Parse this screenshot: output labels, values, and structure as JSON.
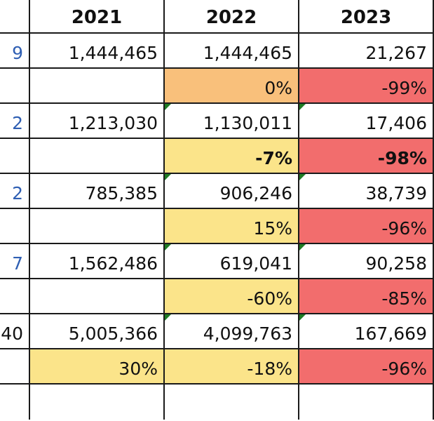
{
  "headers": [
    "",
    "2021",
    "2022",
    "2023"
  ],
  "rows": [
    {
      "kind": "value",
      "cells": [
        {
          "text": "9",
          "style": "left-val"
        },
        {
          "text": "1,444,465"
        },
        {
          "text": "1,444,465"
        },
        {
          "text": "21,267"
        }
      ]
    },
    {
      "kind": "percent",
      "cells": [
        {
          "text": ""
        },
        {
          "text": ""
        },
        {
          "text": "0%",
          "fill": "orange"
        },
        {
          "text": "-99%",
          "fill": "red"
        }
      ]
    },
    {
      "kind": "value",
      "cells": [
        {
          "text": "2",
          "style": "left-val"
        },
        {
          "text": "1,213,030"
        },
        {
          "text": "1,130,011",
          "marker": true
        },
        {
          "text": "17,406",
          "marker": true
        }
      ]
    },
    {
      "kind": "percent",
      "cells": [
        {
          "text": ""
        },
        {
          "text": ""
        },
        {
          "text": "-7%",
          "fill": "yellow",
          "bold": true
        },
        {
          "text": "-98%",
          "fill": "red",
          "bold": true
        }
      ]
    },
    {
      "kind": "value",
      "cells": [
        {
          "text": "2",
          "style": "left-val"
        },
        {
          "text": "785,385"
        },
        {
          "text": "906,246",
          "marker": true
        },
        {
          "text": "38,739",
          "marker": true
        }
      ]
    },
    {
      "kind": "percent",
      "cells": [
        {
          "text": ""
        },
        {
          "text": ""
        },
        {
          "text": "15%",
          "fill": "yellow"
        },
        {
          "text": "-96%",
          "fill": "red"
        }
      ]
    },
    {
      "kind": "value",
      "cells": [
        {
          "text": "7",
          "style": "left-val"
        },
        {
          "text": "1,562,486"
        },
        {
          "text": "619,041",
          "marker": true
        },
        {
          "text": "90,258",
          "marker": true
        }
      ]
    },
    {
      "kind": "percent",
      "cells": [
        {
          "text": ""
        },
        {
          "text": ""
        },
        {
          "text": "-60%",
          "fill": "yellow"
        },
        {
          "text": "-85%",
          "fill": "red"
        }
      ]
    },
    {
      "kind": "value",
      "cells": [
        {
          "text": "40"
        },
        {
          "text": "5,005,366"
        },
        {
          "text": "4,099,763",
          "marker": true
        },
        {
          "text": "167,669",
          "marker": true
        }
      ]
    },
    {
      "kind": "percent",
      "cells": [
        {
          "text": ""
        },
        {
          "text": "30%",
          "fill": "yellow"
        },
        {
          "text": "-18%",
          "fill": "yellow"
        },
        {
          "text": "-96%",
          "fill": "red"
        }
      ]
    },
    {
      "kind": "empty",
      "cells": [
        {
          "text": ""
        },
        {
          "text": ""
        },
        {
          "text": ""
        },
        {
          "text": ""
        }
      ]
    }
  ],
  "colors": {
    "orange": "#f9c07b",
    "yellow": "#fbe48a",
    "red": "#f26d6d",
    "label_blue": "#2f5fb3",
    "comment_marker": "#1e7b24"
  }
}
